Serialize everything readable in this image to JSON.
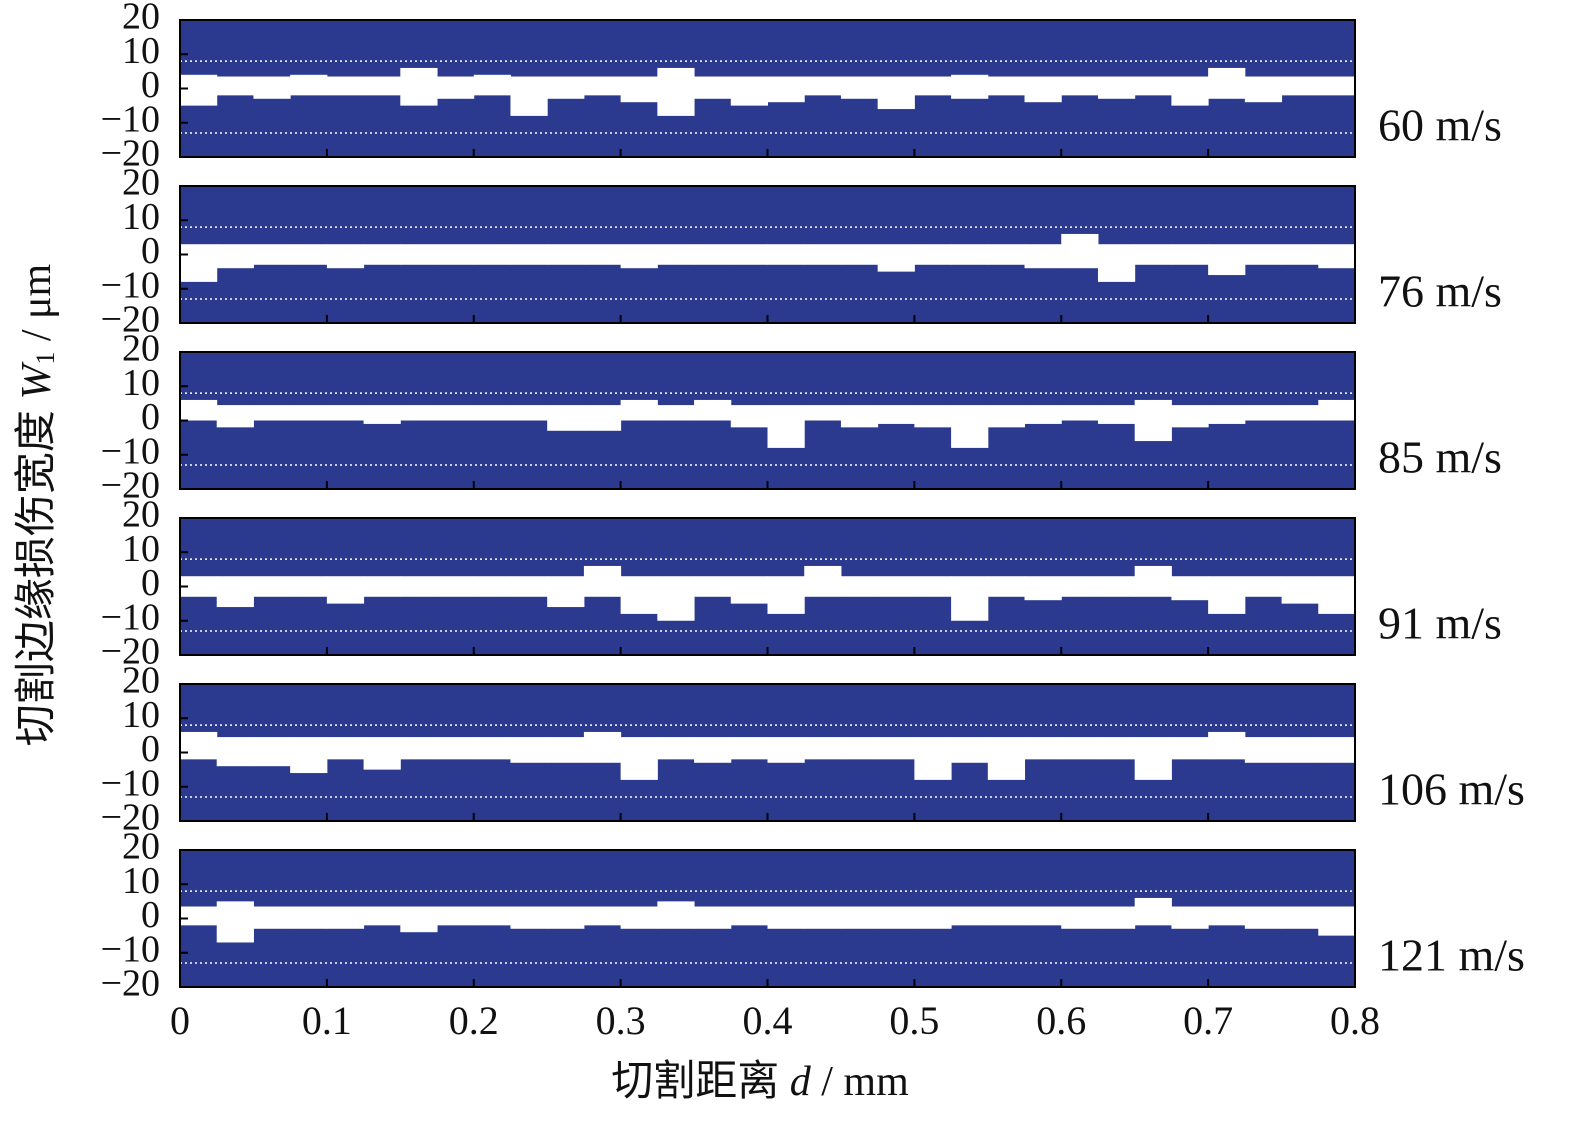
{
  "chart_data": {
    "type": "band",
    "ylabel": {
      "text": "切割边缘损伤宽度",
      "var": "W",
      "sub": "1",
      "unit": "/ μm"
    },
    "xlabel": {
      "text": "切割距离",
      "var": "d",
      "unit": "/ mm"
    },
    "xlim": [
      0,
      0.8
    ],
    "xticks": [
      0,
      0.1,
      0.2,
      0.3,
      0.4,
      0.5,
      0.6,
      0.7,
      0.8
    ],
    "ylim": [
      -20,
      20
    ],
    "yticks": [
      20,
      10,
      0,
      {
        "value": -10,
        "label": "−10"
      },
      {
        "value": -20,
        "label": "−20"
      }
    ],
    "ref_lines": [
      8,
      -13
    ],
    "color": "#2b3a8e",
    "band_color": "#ffffff",
    "x": [
      0.0125,
      0.0375,
      0.0625,
      0.0875,
      0.1125,
      0.1375,
      0.1625,
      0.1875,
      0.2125,
      0.2375,
      0.2625,
      0.2875,
      0.3125,
      0.3375,
      0.3625,
      0.3875,
      0.4125,
      0.4375,
      0.4625,
      0.4875,
      0.5125,
      0.5375,
      0.5625,
      0.5875,
      0.6125,
      0.6375,
      0.6625,
      0.6875,
      0.7125,
      0.7375,
      0.7625,
      0.7875
    ],
    "panels": [
      {
        "label": "60 m/s",
        "upper": [
          4,
          3.5,
          3.5,
          4,
          3.5,
          3.5,
          6,
          3.5,
          4,
          3.5,
          3.5,
          3.5,
          3.5,
          6,
          3.5,
          3.5,
          3.5,
          3.5,
          3.5,
          3.5,
          3.5,
          4,
          3.5,
          3.5,
          3.5,
          3.5,
          3.5,
          3.5,
          6,
          3.5,
          3.5,
          3.5
        ],
        "lower": [
          -5,
          -2,
          -3,
          -2,
          -2,
          -2,
          -5,
          -3,
          -2,
          -8,
          -3,
          -2,
          -4,
          -8,
          -3,
          -5,
          -4,
          -2,
          -3,
          -6,
          -2,
          -3,
          -2,
          -4,
          -2,
          -3,
          -2,
          -5,
          -3,
          -4,
          -2,
          -2
        ]
      },
      {
        "label": "76 m/s",
        "upper": [
          3,
          3,
          3,
          3,
          3,
          3,
          3,
          3,
          3,
          3,
          3,
          3,
          3,
          3,
          3,
          3,
          3,
          3,
          3,
          3,
          3,
          3,
          3,
          3,
          6,
          3,
          3,
          3,
          3,
          3,
          3,
          3
        ],
        "lower": [
          -8,
          -4,
          -3,
          -3,
          -4,
          -3,
          -3,
          -3,
          -3,
          -3,
          -3,
          -3,
          -4,
          -3,
          -3,
          -3,
          -3,
          -3,
          -3,
          -5,
          -3,
          -3,
          -3,
          -4,
          -4,
          -8,
          -3,
          -3,
          -6,
          -3,
          -3,
          -4
        ]
      },
      {
        "label": "85 m/s",
        "upper": [
          6,
          4.5,
          4.5,
          4.5,
          4.5,
          4.5,
          4.5,
          4.5,
          4.5,
          4.5,
          4.5,
          4.5,
          6,
          4.5,
          6,
          4.5,
          4.5,
          4.5,
          4.5,
          4.5,
          4.5,
          4.5,
          4.5,
          4.5,
          4.5,
          4.5,
          6,
          4.5,
          4.5,
          4.5,
          4.5,
          6
        ],
        "lower": [
          0,
          -2,
          0,
          0,
          0,
          -1,
          0,
          0,
          0,
          0,
          -3,
          -3,
          0,
          0,
          0,
          -2,
          -8,
          0,
          -2,
          -1,
          -2,
          -8,
          -2,
          -1,
          0,
          -1,
          -6,
          -2,
          -1,
          0,
          0,
          0
        ]
      },
      {
        "label": "91 m/s",
        "upper": [
          3,
          3,
          3,
          3,
          3,
          3,
          3,
          3,
          3,
          3,
          3,
          6,
          3,
          3,
          3,
          3,
          3,
          6,
          3,
          3,
          3,
          3,
          3,
          3,
          3,
          3,
          6,
          3,
          3,
          3,
          3,
          3
        ],
        "lower": [
          -3,
          -6,
          -3,
          -3,
          -5,
          -3,
          -3,
          -3,
          -3,
          -3,
          -6,
          -3,
          -8,
          -10,
          -3,
          -5,
          -8,
          -3,
          -3,
          -3,
          -3,
          -10,
          -3,
          -4,
          -3,
          -3,
          -3,
          -4,
          -8,
          -3,
          -5,
          -8
        ]
      },
      {
        "label": "106 m/s",
        "upper": [
          6,
          4.5,
          4.5,
          4.5,
          4.5,
          4.5,
          4.5,
          4.5,
          4.5,
          4.5,
          4.5,
          6,
          4.5,
          4.5,
          4.5,
          4.5,
          4.5,
          4.5,
          4.5,
          4.5,
          4.5,
          4.5,
          4.5,
          4.5,
          4.5,
          4.5,
          4.5,
          4.5,
          6,
          4.5,
          4.5,
          4.5
        ],
        "lower": [
          -2,
          -4,
          -4,
          -6,
          -2,
          -5,
          -2,
          -2,
          -2,
          -3,
          -3,
          -3,
          -8,
          -2,
          -3,
          -2,
          -3,
          -2,
          -2,
          -2,
          -8,
          -3,
          -8,
          -2,
          -2,
          -2,
          -8,
          -2,
          -2,
          -3,
          -3,
          -3
        ]
      },
      {
        "label": "121 m/s",
        "upper": [
          3.5,
          5,
          3.5,
          3.5,
          3.5,
          3.5,
          3.5,
          3.5,
          3.5,
          3.5,
          3.5,
          3.5,
          3.5,
          5,
          3.5,
          3.5,
          3.5,
          3.5,
          3.5,
          3.5,
          3.5,
          3.5,
          3.5,
          3.5,
          3.5,
          3.5,
          6,
          3.5,
          3.5,
          3.5,
          3.5,
          3.5
        ],
        "lower": [
          -2,
          -7,
          -3,
          -3,
          -3,
          -2,
          -4,
          -2,
          -2,
          -3,
          -3,
          -2,
          -3,
          -3,
          -3,
          -2,
          -3,
          -3,
          -3,
          -3,
          -3,
          -2,
          -2,
          -2,
          -3,
          -3,
          -2,
          -3,
          -2,
          -3,
          -3,
          -5
        ]
      }
    ]
  }
}
